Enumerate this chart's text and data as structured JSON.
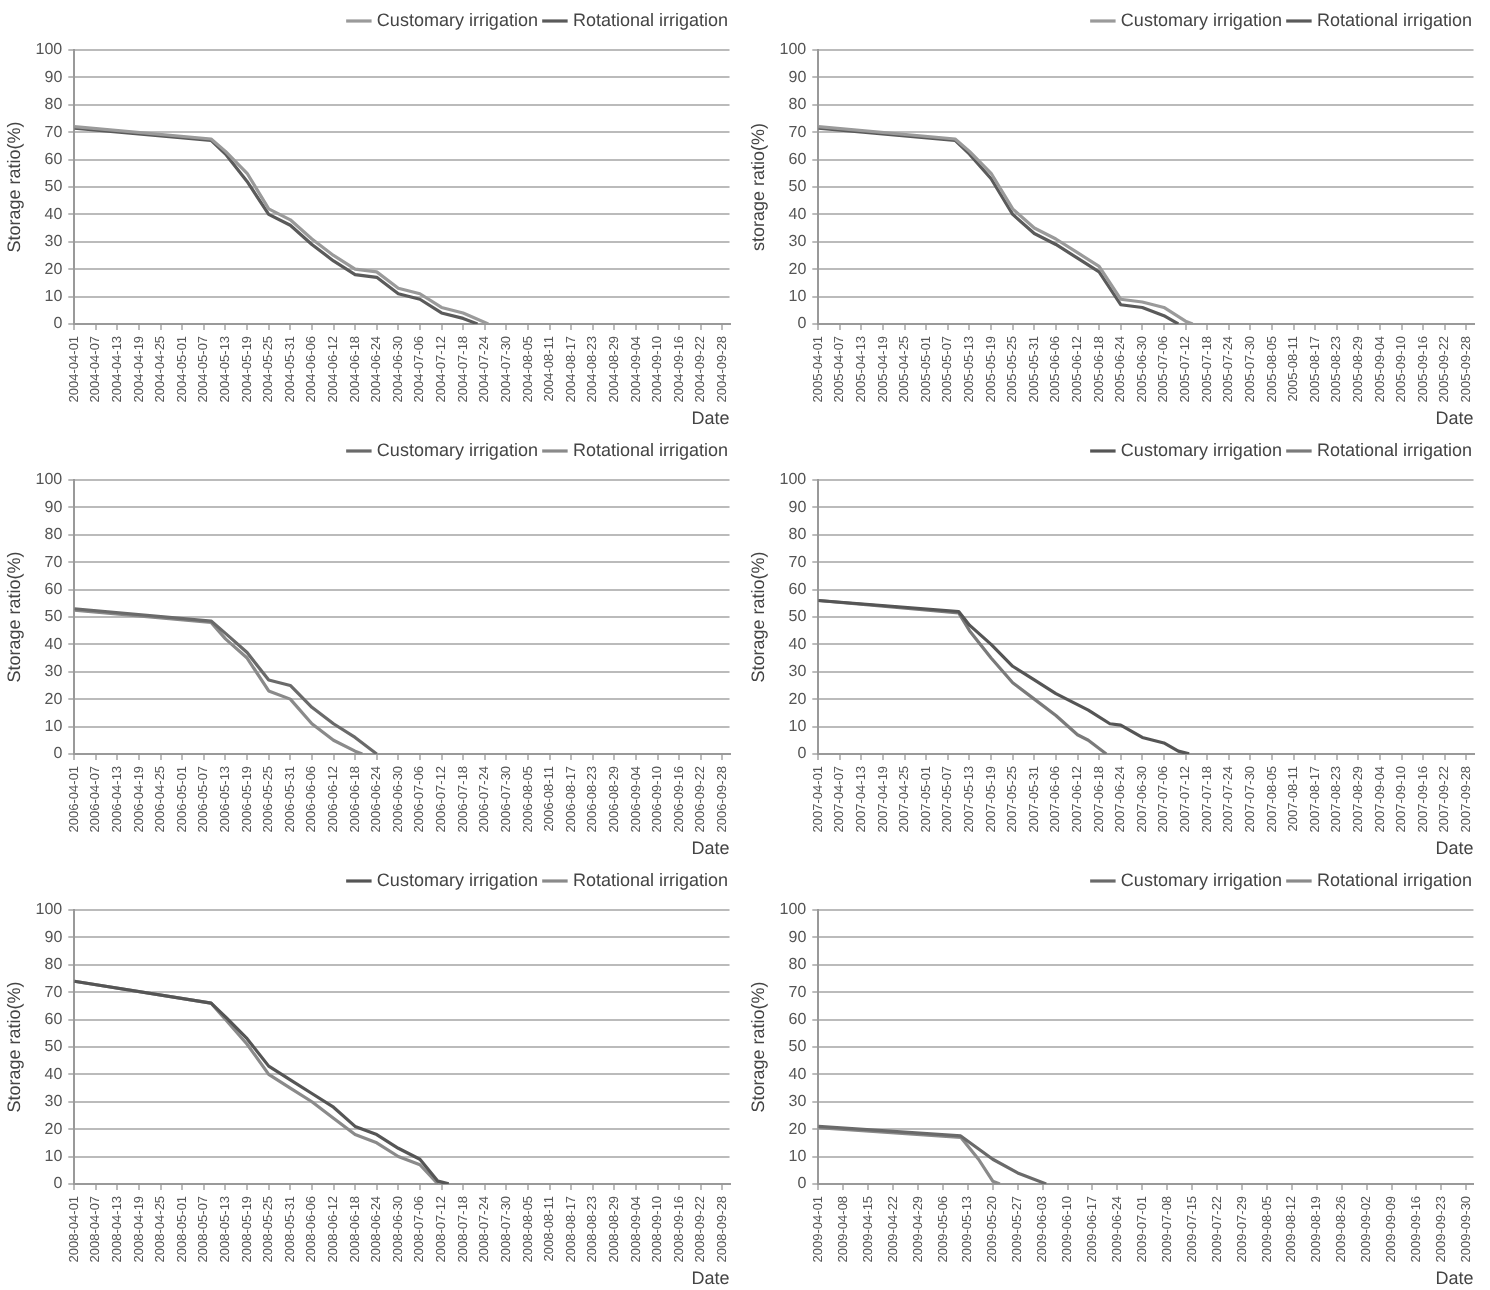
{
  "chart_data": [
    {
      "type": "line",
      "xlabel": "Date",
      "ylabel": "Storage ratio(%)",
      "legend": "top right",
      "grid": "y",
      "ylim": [
        0,
        100
      ],
      "yticks": [
        0,
        10,
        20,
        30,
        40,
        50,
        60,
        70,
        80,
        90,
        100
      ],
      "xlim": [
        "2004-04-01",
        "2004-09-30"
      ],
      "xticks": [
        "2004-04-01",
        "2004-04-07",
        "2004-04-13",
        "2004-04-19",
        "2004-04-25",
        "2004-05-01",
        "2004-05-07",
        "2004-05-13",
        "2004-05-19",
        "2004-05-25",
        "2004-05-31",
        "2004-06-06",
        "2004-06-12",
        "2004-06-18",
        "2004-06-24",
        "2004-06-30",
        "2004-07-06",
        "2004-07-12",
        "2004-07-18",
        "2004-07-24",
        "2004-07-30",
        "2004-08-05",
        "2004-08-11",
        "2004-08-17",
        "2004-08-23",
        "2004-08-29",
        "2004-09-04",
        "2004-09-10",
        "2004-09-16",
        "2004-09-22",
        "2004-09-28"
      ],
      "series": [
        {
          "name": "Customary irrigation",
          "color": "#9a9a9a",
          "x": [
            "2004-04-01",
            "2004-05-09",
            "2004-05-13",
            "2004-05-19",
            "2004-05-25",
            "2004-05-31",
            "2004-06-06",
            "2004-06-12",
            "2004-06-18",
            "2004-06-24",
            "2004-06-30",
            "2004-07-06",
            "2004-07-12",
            "2004-07-18",
            "2004-07-25"
          ],
          "values": [
            72,
            67.5,
            63,
            55,
            42,
            38,
            31,
            25,
            20,
            19,
            13,
            11,
            6,
            4,
            0
          ]
        },
        {
          "name": "Rotational irrigation",
          "color": "#5a5a5a",
          "x": [
            "2004-04-01",
            "2004-05-09",
            "2004-05-13",
            "2004-05-19",
            "2004-05-25",
            "2004-05-31",
            "2004-06-06",
            "2004-06-12",
            "2004-06-18",
            "2004-06-24",
            "2004-06-30",
            "2004-07-06",
            "2004-07-12",
            "2004-07-18",
            "2004-07-22"
          ],
          "values": [
            71.5,
            67,
            62,
            52,
            40,
            36,
            29,
            23,
            18,
            17,
            11,
            9,
            4,
            2,
            0
          ]
        }
      ]
    },
    {
      "type": "line",
      "xlabel": "Date",
      "ylabel": "storage ratio(%)",
      "legend": "top right",
      "grid": "y",
      "ylim": [
        0,
        100
      ],
      "yticks": [
        0,
        10,
        20,
        30,
        40,
        50,
        60,
        70,
        80,
        90,
        100
      ],
      "xlim": [
        "2005-04-01",
        "2005-09-30"
      ],
      "xticks": [
        "2005-04-01",
        "2005-04-07",
        "2005-04-13",
        "2005-04-19",
        "2005-04-25",
        "2005-05-01",
        "2005-05-07",
        "2005-05-13",
        "2005-05-19",
        "2005-05-25",
        "2005-05-31",
        "2005-06-06",
        "2005-06-12",
        "2005-06-18",
        "2005-06-24",
        "2005-06-30",
        "2005-07-06",
        "2005-07-12",
        "2005-07-18",
        "2005-07-24",
        "2005-07-30",
        "2005-08-05",
        "2005-08-11",
        "2005-08-17",
        "2005-08-23",
        "2005-08-29",
        "2005-09-04",
        "2005-09-10",
        "2005-09-16",
        "2005-09-22",
        "2005-09-28"
      ],
      "series": [
        {
          "name": "Customary irrigation",
          "color": "#9a9a9a",
          "x": [
            "2005-04-01",
            "2005-05-09",
            "2005-05-13",
            "2005-05-19",
            "2005-05-25",
            "2005-05-31",
            "2005-06-06",
            "2005-06-12",
            "2005-06-18",
            "2005-06-24",
            "2005-06-30",
            "2005-07-06",
            "2005-07-12",
            "2005-07-14"
          ],
          "values": [
            72,
            67.5,
            63,
            55,
            42,
            35,
            31,
            26,
            21,
            9,
            8,
            6,
            1,
            0
          ]
        },
        {
          "name": "Rotational irrigation",
          "color": "#5a5a5a",
          "x": [
            "2005-04-01",
            "2005-05-09",
            "2005-05-13",
            "2005-05-19",
            "2005-05-25",
            "2005-05-31",
            "2005-06-06",
            "2005-06-12",
            "2005-06-18",
            "2005-06-24",
            "2005-06-30",
            "2005-07-06",
            "2005-07-10"
          ],
          "values": [
            71.5,
            67,
            62,
            53,
            40,
            33,
            29,
            24,
            19,
            7,
            6,
            3,
            0
          ]
        }
      ]
    },
    {
      "type": "line",
      "xlabel": "Date",
      "ylabel": "Storage ratio(%)",
      "legend": "top right",
      "grid": "y",
      "ylim": [
        0,
        100
      ],
      "yticks": [
        0,
        10,
        20,
        30,
        40,
        50,
        60,
        70,
        80,
        90,
        100
      ],
      "xlim": [
        "2006-04-01",
        "2006-09-30"
      ],
      "xticks": [
        "2006-04-01",
        "2006-04-07",
        "2006-04-13",
        "2006-04-19",
        "2006-04-25",
        "2006-05-01",
        "2006-05-07",
        "2006-05-13",
        "2006-05-19",
        "2006-05-25",
        "2006-05-31",
        "2006-06-06",
        "2006-06-12",
        "2006-06-18",
        "2006-06-24",
        "2006-06-30",
        "2006-07-06",
        "2006-07-12",
        "2006-07-18",
        "2006-07-24",
        "2006-07-30",
        "2006-08-05",
        "2006-08-11",
        "2006-08-17",
        "2006-08-23",
        "2006-08-29",
        "2006-09-04",
        "2006-09-10",
        "2006-09-16",
        "2006-09-22",
        "2006-09-28"
      ],
      "series": [
        {
          "name": "Customary irrigation",
          "color": "#6a6a6a",
          "x": [
            "2006-04-01",
            "2006-05-09",
            "2006-05-13",
            "2006-05-19",
            "2006-05-25",
            "2006-05-31",
            "2006-06-06",
            "2006-06-12",
            "2006-06-18",
            "2006-06-24"
          ],
          "values": [
            53,
            48.5,
            44,
            37,
            27,
            25,
            17,
            11,
            6,
            0
          ]
        },
        {
          "name": "Rotational irrigation",
          "color": "#8a8a8a",
          "x": [
            "2006-04-01",
            "2006-05-09",
            "2006-05-13",
            "2006-05-19",
            "2006-05-25",
            "2006-05-31",
            "2006-06-06",
            "2006-06-12",
            "2006-06-18",
            "2006-06-20"
          ],
          "values": [
            52.5,
            48,
            42,
            35,
            23,
            20,
            11,
            5,
            1,
            0
          ]
        }
      ]
    },
    {
      "type": "line",
      "xlabel": "Date",
      "ylabel": "Storage ratio(%)",
      "legend": "top right",
      "grid": "y",
      "ylim": [
        0,
        100
      ],
      "yticks": [
        0,
        10,
        20,
        30,
        40,
        50,
        60,
        70,
        80,
        90,
        100
      ],
      "xlim": [
        "2007-04-01",
        "2007-09-30"
      ],
      "xticks": [
        "2007-04-01",
        "2007-04-07",
        "2007-04-13",
        "2007-04-19",
        "2007-04-25",
        "2007-05-01",
        "2007-05-07",
        "2007-05-13",
        "2007-05-19",
        "2007-05-25",
        "2007-05-31",
        "2007-06-06",
        "2007-06-12",
        "2007-06-18",
        "2007-06-24",
        "2007-06-30",
        "2007-07-06",
        "2007-07-12",
        "2007-07-18",
        "2007-07-24",
        "2007-07-30",
        "2007-08-05",
        "2007-08-11",
        "2007-08-17",
        "2007-08-23",
        "2007-08-29",
        "2007-09-04",
        "2007-09-10",
        "2007-09-16",
        "2007-09-22",
        "2007-09-28"
      ],
      "series": [
        {
          "name": "Customary irrigation",
          "color": "#555555",
          "x": [
            "2007-04-01",
            "2007-05-10",
            "2007-05-13",
            "2007-05-19",
            "2007-05-25",
            "2007-05-31",
            "2007-06-06",
            "2007-06-12",
            "2007-06-15",
            "2007-06-21",
            "2007-06-24",
            "2007-06-30",
            "2007-07-06",
            "2007-07-10",
            "2007-07-13"
          ],
          "values": [
            56,
            52,
            47,
            40,
            32,
            27,
            22,
            18,
            16,
            11,
            10.5,
            6,
            4,
            1,
            0
          ]
        },
        {
          "name": "Rotational irrigation",
          "color": "#7a7a7a",
          "x": [
            "2007-04-01",
            "2007-05-10",
            "2007-05-13",
            "2007-05-19",
            "2007-05-25",
            "2007-05-31",
            "2007-06-06",
            "2007-06-12",
            "2007-06-15",
            "2007-06-20"
          ],
          "values": [
            56,
            51.5,
            45,
            35,
            26,
            20,
            14,
            7,
            5,
            0
          ]
        }
      ]
    },
    {
      "type": "line",
      "xlabel": "Date",
      "ylabel": "Storage ratio(%)",
      "legend": "top right",
      "grid": "y",
      "ylim": [
        0,
        100
      ],
      "yticks": [
        0,
        10,
        20,
        30,
        40,
        50,
        60,
        70,
        80,
        90,
        100
      ],
      "xlim": [
        "2008-04-01",
        "2008-09-30"
      ],
      "xticks": [
        "2008-04-01",
        "2008-04-07",
        "2008-04-13",
        "2008-04-19",
        "2008-04-25",
        "2008-05-01",
        "2008-05-07",
        "2008-05-13",
        "2008-05-19",
        "2008-05-25",
        "2008-05-31",
        "2008-06-06",
        "2008-06-12",
        "2008-06-18",
        "2008-06-24",
        "2008-06-30",
        "2008-07-06",
        "2008-07-12",
        "2008-07-18",
        "2008-07-24",
        "2008-07-30",
        "2008-08-05",
        "2008-08-11",
        "2008-08-17",
        "2008-08-23",
        "2008-08-29",
        "2008-09-04",
        "2008-09-10",
        "2008-09-16",
        "2008-09-22",
        "2008-09-28"
      ],
      "series": [
        {
          "name": "Customary irrigation",
          "color": "#555555",
          "x": [
            "2008-04-01",
            "2008-05-09",
            "2008-05-13",
            "2008-05-19",
            "2008-05-25",
            "2008-05-31",
            "2008-06-06",
            "2008-06-12",
            "2008-06-18",
            "2008-06-24",
            "2008-06-30",
            "2008-07-06",
            "2008-07-11",
            "2008-07-14"
          ],
          "values": [
            74,
            66,
            61,
            53,
            43,
            38,
            33,
            28,
            21,
            18,
            13,
            9,
            1,
            0
          ]
        },
        {
          "name": "Rotational irrigation",
          "color": "#8a8a8a",
          "x": [
            "2008-04-01",
            "2008-05-09",
            "2008-05-13",
            "2008-05-19",
            "2008-05-25",
            "2008-05-31",
            "2008-06-06",
            "2008-06-12",
            "2008-06-18",
            "2008-06-24",
            "2008-06-30",
            "2008-07-06",
            "2008-07-11"
          ],
          "values": [
            74,
            66,
            60,
            51,
            40,
            35,
            30,
            24,
            18,
            15,
            10,
            7,
            0
          ]
        }
      ]
    },
    {
      "type": "line",
      "xlabel": "Date",
      "ylabel": "Storage ratio(%)",
      "legend": "top right",
      "grid": "y",
      "ylim": [
        0,
        100
      ],
      "yticks": [
        0,
        10,
        20,
        30,
        40,
        50,
        60,
        70,
        80,
        90,
        100
      ],
      "xlim": [
        "2009-04-01",
        "2009-10-02"
      ],
      "xticks": [
        "2009-04-01",
        "2009-04-08",
        "2009-04-15",
        "2009-04-22",
        "2009-04-29",
        "2009-05-06",
        "2009-05-13",
        "2009-05-20",
        "2009-05-27",
        "2009-06-03",
        "2009-06-10",
        "2009-06-17",
        "2009-06-24",
        "2009-07-01",
        "2009-07-08",
        "2009-07-15",
        "2009-07-22",
        "2009-07-29",
        "2009-08-05",
        "2009-08-12",
        "2009-08-19",
        "2009-08-26",
        "2009-09-02",
        "2009-09-09",
        "2009-09-16",
        "2009-09-23",
        "2009-09-30"
      ],
      "series": [
        {
          "name": "Customary irrigation",
          "color": "#6a6a6a",
          "x": [
            "2009-04-01",
            "2009-05-11",
            "2009-05-20",
            "2009-05-27",
            "2009-06-04"
          ],
          "values": [
            21,
            17.5,
            9,
            4,
            0
          ]
        },
        {
          "name": "Rotational irrigation",
          "color": "#8a8a8a",
          "x": [
            "2009-04-01",
            "2009-05-11",
            "2009-05-16",
            "2009-05-20",
            "2009-05-22"
          ],
          "values": [
            20.5,
            17,
            9,
            1,
            0
          ]
        }
      ]
    }
  ]
}
